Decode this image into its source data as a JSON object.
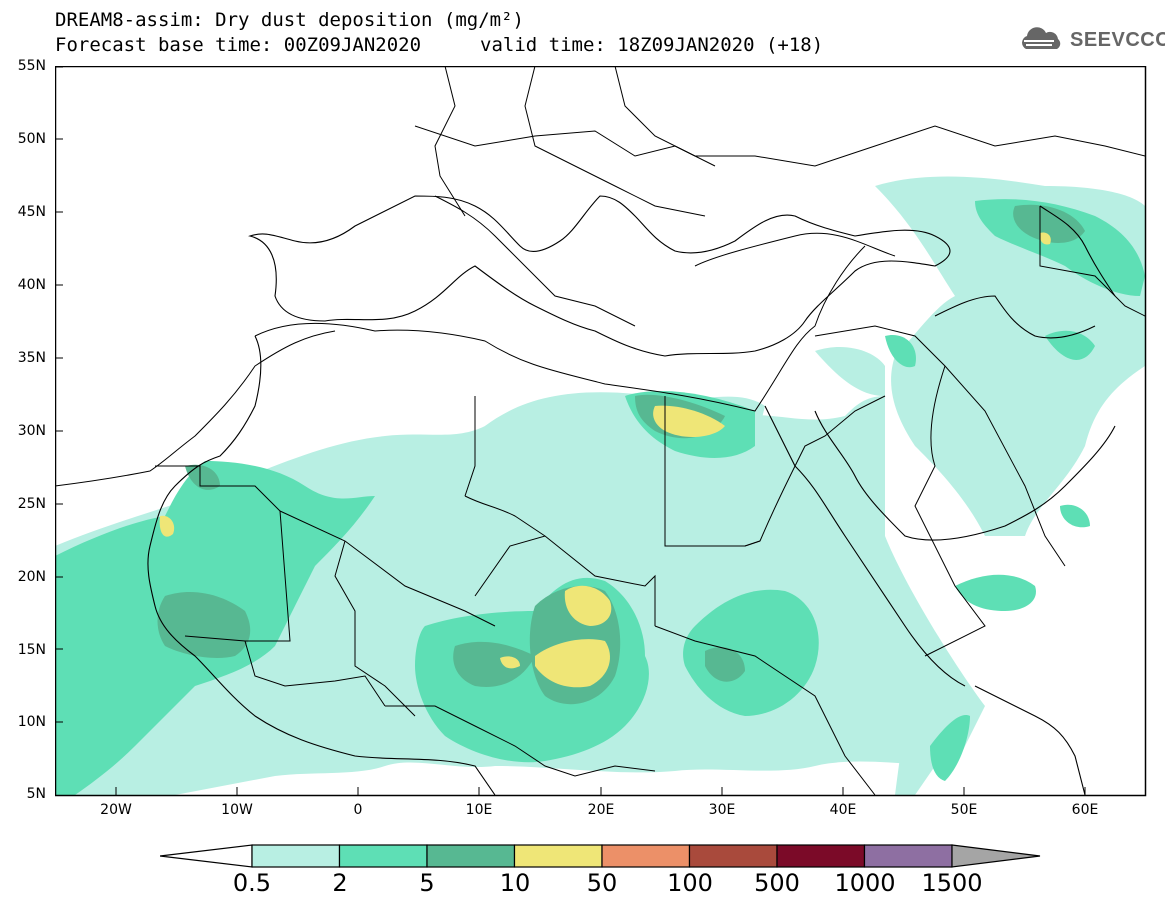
{
  "title": {
    "line1": "DREAM8-assim: Dry dust deposition (mg/m²)",
    "base_time": "Forecast base time: 00Z09JAN2020",
    "valid_time": "valid time: 18Z09JAN2020 (+18)"
  },
  "logo": {
    "text": "SEEVCCC",
    "icon": "cloud-icon"
  },
  "map_data": {
    "lon_range": [
      -25,
      65
    ],
    "lat_range": [
      5,
      55
    ],
    "lat_ticks": [
      "55N",
      "50N",
      "45N",
      "40N",
      "35N",
      "30N",
      "25N",
      "20N",
      "15N",
      "10N",
      "5N"
    ],
    "lon_ticks": [
      "20W",
      "10W",
      "0",
      "10E",
      "20E",
      "30E",
      "40E",
      "50E",
      "60E"
    ]
  },
  "colorbar": {
    "labels": [
      "0.5",
      "2",
      "5",
      "10",
      "50",
      "100",
      "500",
      "1000",
      "1500"
    ],
    "colors": [
      "#b8efe3",
      "#5edfb5",
      "#57b892",
      "#efe677",
      "#ec9068",
      "#a94a3c",
      "#7b0a28",
      "#8e6fa2",
      "#a5a5a5"
    ],
    "below_color": "#ffffff",
    "above_color": "#a5a5a5"
  }
}
